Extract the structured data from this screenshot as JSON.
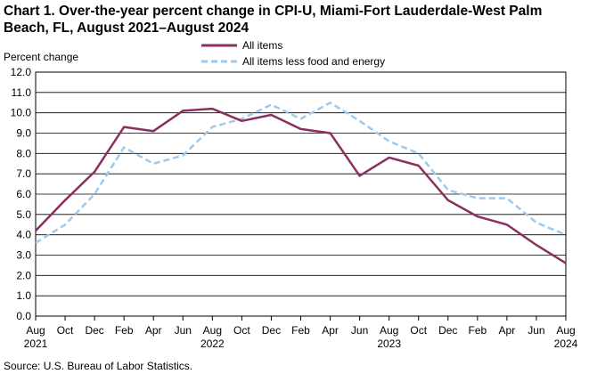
{
  "chart_data": {
    "type": "line",
    "title_line1": "Chart 1. Over-the-year percent change in CPI-U, Miami-Fort Lauderdale-West Palm",
    "title_line2": "Beach, FL, August 2021–August 2024",
    "ylabel": "Percent change",
    "xlabel": "",
    "ylim": [
      0,
      12
    ],
    "yticks": [
      "0.0",
      "1.0",
      "2.0",
      "3.0",
      "4.0",
      "5.0",
      "6.0",
      "7.0",
      "8.0",
      "9.0",
      "10.0",
      "11.0",
      "12.0"
    ],
    "grid": true,
    "legend_position": "top-center",
    "categories": [
      "Aug",
      "Oct",
      "Dec",
      "Feb",
      "Apr",
      "Jun",
      "Aug",
      "Oct",
      "Dec",
      "Feb",
      "Apr",
      "Jun",
      "Aug",
      "Oct",
      "Dec",
      "Feb",
      "Apr",
      "Jun",
      "Aug"
    ],
    "years": [
      {
        "label": "2021",
        "index": 0
      },
      {
        "label": "2022",
        "index": 6
      },
      {
        "label": "2023",
        "index": 12
      },
      {
        "label": "2024",
        "index": 18
      }
    ],
    "series": [
      {
        "name": "All items",
        "color": "#8b2f5e",
        "style": "solid",
        "values": [
          4.2,
          5.7,
          7.1,
          9.3,
          9.1,
          10.1,
          10.2,
          9.6,
          9.9,
          9.2,
          9.0,
          6.9,
          7.8,
          7.4,
          5.7,
          4.9,
          4.5,
          3.5,
          2.6
        ]
      },
      {
        "name": "All items less food and energy",
        "color": "#9ec9ef",
        "style": "dashed",
        "values": [
          3.6,
          4.5,
          6.0,
          8.3,
          7.5,
          7.9,
          9.3,
          9.7,
          10.4,
          9.7,
          10.5,
          9.6,
          8.6,
          8.0,
          6.2,
          5.8,
          5.8,
          4.6,
          4.0
        ]
      }
    ]
  },
  "source": "Source:  U.S. Bureau  of Labor Statistics."
}
